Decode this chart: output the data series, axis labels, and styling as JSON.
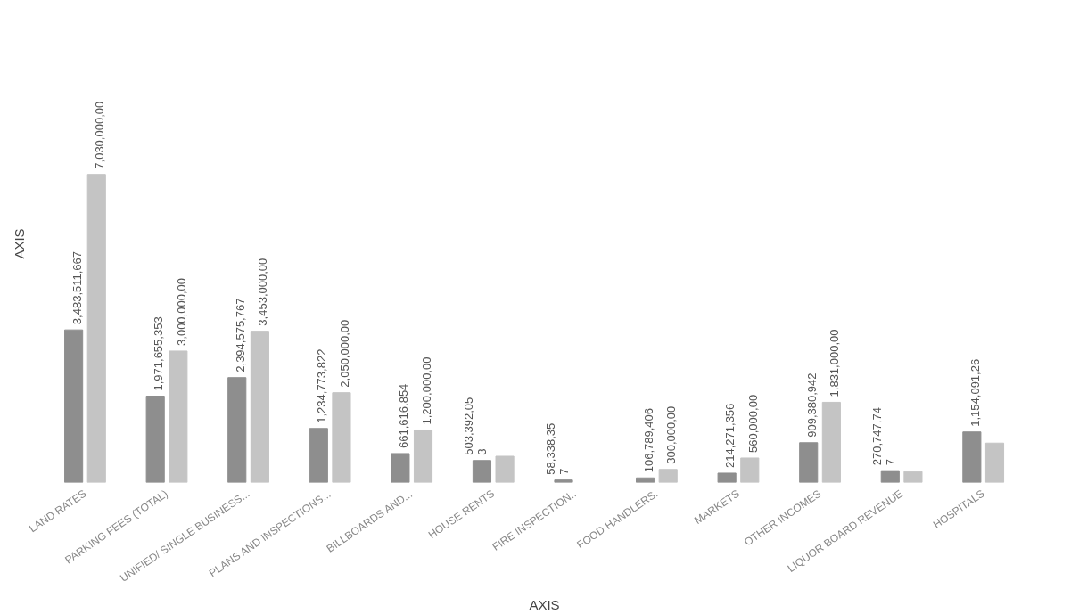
{
  "chart_data": {
    "type": "bar",
    "xlabel": "AXIS",
    "ylabel": "AXIS",
    "categories": [
      "LAND RATES",
      "PARKING FEES (TOTAL)",
      "UNIFIED/ SINGLE BUSINESS...",
      "PLANS AND INSPECTIONS...",
      "BILLBOARDS AND...",
      "HOUSE RENTS",
      "FIRE INSPECTION..",
      "FOOD HANDLERS.",
      "MARKETS",
      "OTHER INCOMES",
      "LIQUOR BOARD REVENUE",
      "HOSPITALS"
    ],
    "series": [
      {
        "color": "#8e8e8e",
        "values": [
          3483511667,
          1971655353,
          2394575767,
          1234773822,
          661616854,
          503392053,
          58338357,
          106789406,
          214271356,
          909380942,
          270747747,
          1154091260
        ],
        "value_labels": [
          "3,483,511,667",
          "1,971,655,353",
          "2,394,575,767",
          "1,234,773,822",
          "661,616,854",
          "503,392,05\n3",
          "58,338,35\n7",
          "106,789,406",
          "214,271,356",
          "909,380,942",
          "270,747,74\n7",
          "1,154,091,26"
        ]
      },
      {
        "color": "#c4c4c4",
        "values": [
          7030000000,
          3000000000,
          3453000000,
          2050000000,
          1200000000,
          600000000,
          null,
          300000000,
          560000000,
          1831000000,
          250000000,
          900000000
        ],
        "value_labels": [
          "7,030,000,00",
          "3,000,000,00",
          "3,453,000,00",
          "2,050,000,00",
          "1,200,000,00",
          null,
          null,
          "300,000,00",
          "560,000,00",
          "1,831,000,00",
          null,
          null
        ]
      }
    ],
    "tick_labels": "x",
    "grid": false
  }
}
